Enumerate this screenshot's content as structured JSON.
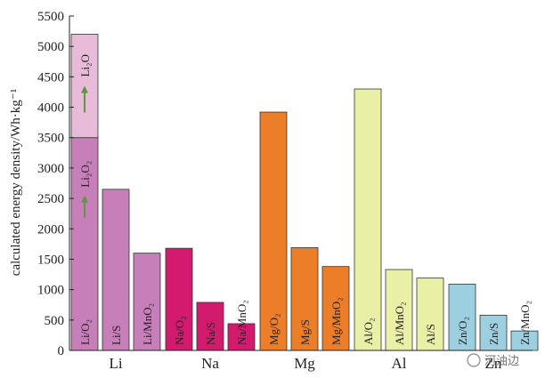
{
  "chart_data": {
    "type": "bar",
    "title": "",
    "ylabel": "calculated energy density/Wh·kg⁻¹",
    "xlabel": "",
    "ylim": [
      0,
      5500
    ],
    "yticks": [
      0,
      500,
      1000,
      1500,
      2000,
      2500,
      3000,
      3500,
      4000,
      4500,
      5000,
      5500
    ],
    "grid": false,
    "groups": [
      {
        "name": "Li",
        "color": "#c77fb9",
        "bars": [
          {
            "label": "Li/O₂",
            "value": 3500
          },
          {
            "label": "Li/S",
            "value": 2650
          },
          {
            "label": "Li/MnO₂",
            "value": 1600
          }
        ]
      },
      {
        "name": "Na",
        "color": "#d21a6e",
        "bars": [
          {
            "label": "Na/O₂",
            "value": 1680
          },
          {
            "label": "Na/S",
            "value": 790
          },
          {
            "label": "Na/MnO₂",
            "value": 440
          }
        ]
      },
      {
        "name": "Mg",
        "color": "#ec7e2a",
        "bars": [
          {
            "label": "Mg/O₂",
            "value": 3920
          },
          {
            "label": "Mg/S",
            "value": 1690
          },
          {
            "label": "Mg/MnO₂",
            "value": 1380
          }
        ]
      },
      {
        "name": "Al",
        "color": "#e9f0a6",
        "bars": [
          {
            "label": "Al/O₂",
            "value": 4300
          },
          {
            "label": "Al/MnO₂",
            "value": 1330
          },
          {
            "label": "Al/S",
            "value": 1190
          }
        ]
      },
      {
        "name": "Zn",
        "color": "#9ccfe0",
        "bars": [
          {
            "label": "Zn/O₂",
            "value": 1090
          },
          {
            "label": "Zn/S",
            "value": 580
          },
          {
            "label": "Zn/MnO₂",
            "value": 320
          }
        ]
      }
    ],
    "stacked_extension": {
      "label": "Li₂O",
      "from": 3500,
      "to": 5200,
      "color": "#e8bcd9",
      "inner_label": "Li₂O₂",
      "arrow_color": "#5a9a3c"
    }
  },
  "watermark": {
    "text": "河油边"
  }
}
